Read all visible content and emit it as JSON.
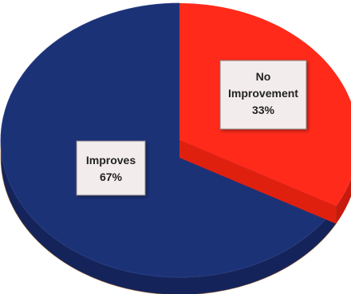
{
  "chart_data": {
    "type": "pie",
    "style": "3d",
    "title": "",
    "slices": [
      {
        "label": "Improves",
        "value": 67,
        "value_label": "67%",
        "color": "#1c3277",
        "side_color": "#14245a",
        "label_lines": [
          "Improves",
          "67%"
        ]
      },
      {
        "label": "No Improvement",
        "value": 33,
        "value_label": "33%",
        "color": "#ff2a1a",
        "side_color": "#c81a0e",
        "label_lines": [
          "No",
          "Improvement",
          "33%"
        ]
      }
    ],
    "legend": "none",
    "data_labels": "inside-boxes"
  }
}
